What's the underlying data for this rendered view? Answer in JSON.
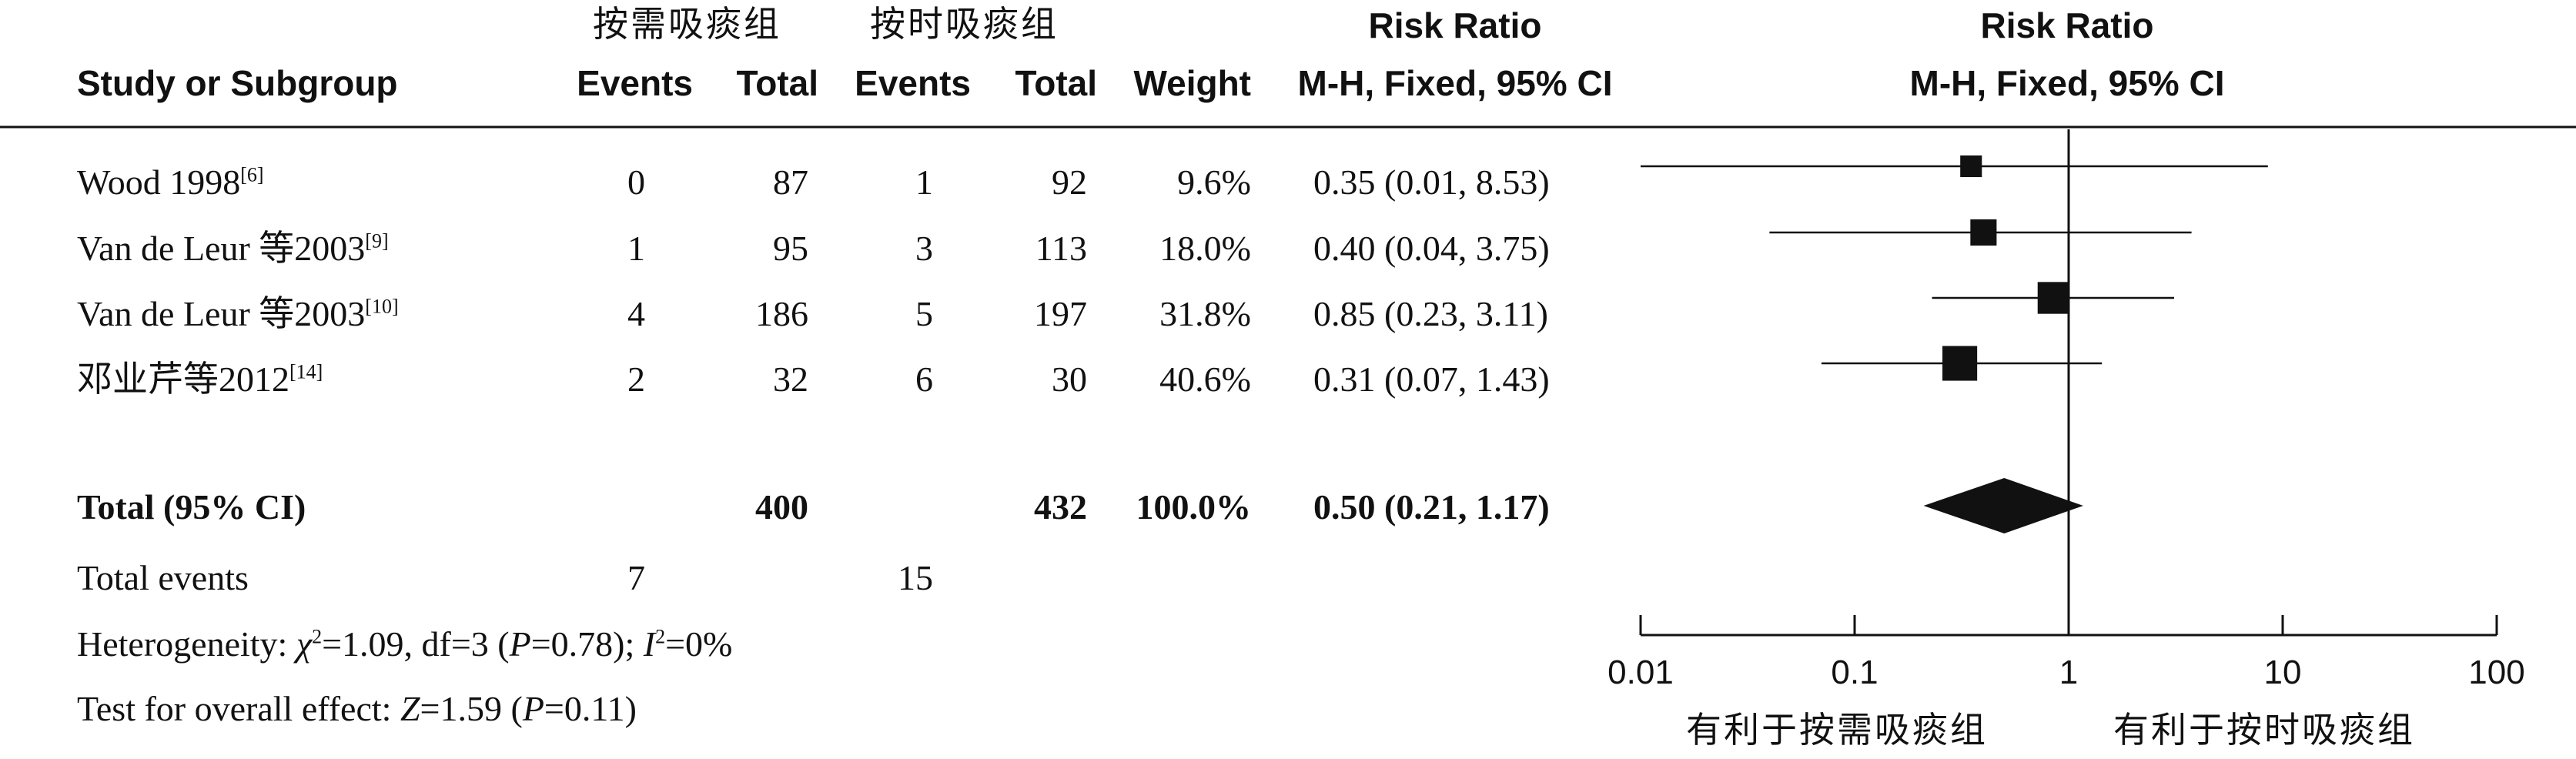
{
  "headers": {
    "exp_group": "按需吸痰组",
    "ctrl_group": "按时吸痰组",
    "study": "Study or Subgroup",
    "events": "Events",
    "total": "Total",
    "weight": "Weight",
    "rr_title": "Risk Ratio",
    "rr_method": "M-H, Fixed, 95% CI",
    "plot_title": "Risk Ratio",
    "plot_method": "M-H, Fixed, 95% CI"
  },
  "studies": [
    {
      "name": "Wood 1998",
      "ref": "[6]",
      "exp_events": "0",
      "exp_total": "87",
      "ctrl_events": "1",
      "ctrl_total": "92",
      "weight": "9.6%",
      "ci_text": "0.35 (0.01, 8.53)"
    },
    {
      "name": "Van de Leur 等2003",
      "ref": "[9]",
      "exp_events": "1",
      "exp_total": "95",
      "ctrl_events": "3",
      "ctrl_total": "113",
      "weight": "18.0%",
      "ci_text": "0.40 (0.04, 3.75)"
    },
    {
      "name": "Van de Leur 等2003",
      "ref": "[10]",
      "exp_events": "4",
      "exp_total": "186",
      "ctrl_events": "5",
      "ctrl_total": "197",
      "weight": "31.8%",
      "ci_text": "0.85 (0.23, 3.11)"
    },
    {
      "name": "邓业芹等2012",
      "ref": "[14]",
      "exp_events": "2",
      "exp_total": "32",
      "ctrl_events": "6",
      "ctrl_total": "30",
      "weight": "40.6%",
      "ci_text": "0.31 (0.07, 1.43)"
    }
  ],
  "total": {
    "label": "Total (95% CI)",
    "exp_total": "400",
    "ctrl_total": "432",
    "weight": "100.0%",
    "ci_text": "0.50 (0.21, 1.17)"
  },
  "total_events": {
    "label": "Total events",
    "exp": "7",
    "ctrl": "15"
  },
  "heterogeneity": {
    "prefix": "Heterogeneity: ",
    "chi_sym": "χ",
    "chi_val": "=1.09, df=3 (",
    "p_sym": "P",
    "p_val": "=0.78); ",
    "i_sym": "I",
    "i_val": "=0%"
  },
  "overall": {
    "prefix": "Test for overall effect: ",
    "z_sym": "Z",
    "z_val": "=1.59 (",
    "p_sym": "P",
    "p_val": "=0.11)"
  },
  "favours": {
    "left": "有利于按需吸痰组",
    "right": "有利于按时吸痰组"
  },
  "chart_data": {
    "type": "forest",
    "scale": "log",
    "xlim": [
      0.01,
      100
    ],
    "ticks": [
      0.01,
      0.1,
      1,
      10,
      100
    ],
    "tick_labels": [
      "0.01",
      "0.1",
      "1",
      "10",
      "100"
    ],
    "null_value": 1,
    "studies": [
      {
        "rr": 0.35,
        "lower": 0.01,
        "upper": 8.53,
        "weight": 9.6
      },
      {
        "rr": 0.4,
        "lower": 0.04,
        "upper": 3.75,
        "weight": 18.0
      },
      {
        "rr": 0.85,
        "lower": 0.23,
        "upper": 3.11,
        "weight": 31.8
      },
      {
        "rr": 0.31,
        "lower": 0.07,
        "upper": 1.43,
        "weight": 40.6
      }
    ],
    "pooled": {
      "rr": 0.5,
      "lower": 0.21,
      "upper": 1.17
    }
  }
}
